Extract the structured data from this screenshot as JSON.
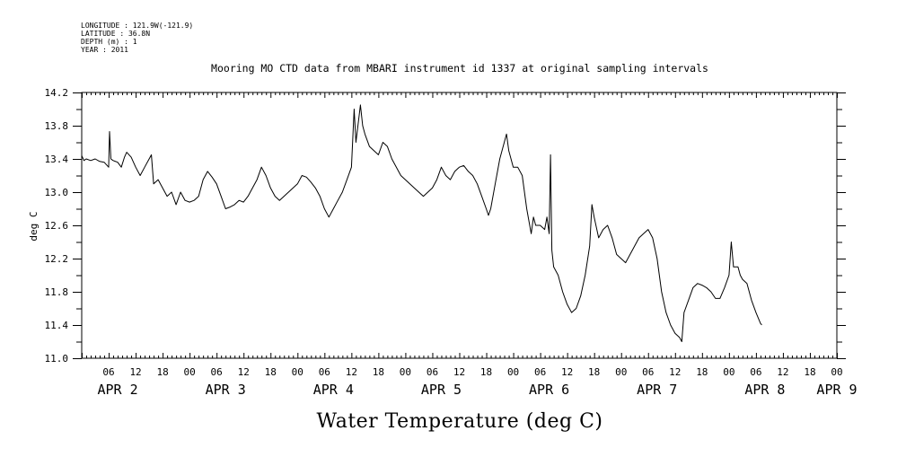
{
  "meta": {
    "longitude": "LONGITUDE : 121.9W(-121.9)",
    "latitude": "LATITUDE : 36.8N",
    "depth": "DEPTH (m) : 1",
    "year": "YEAR : 2011"
  },
  "chart_data": {
    "type": "line",
    "title": "Mooring MO CTD data from MBARI instrument id 1337 at original sampling intervals",
    "xlabel": "Water Temperature (deg C)",
    "ylabel": "deg C",
    "ylim": [
      11.0,
      14.2
    ],
    "yticks": [
      "11.0",
      "11.4",
      "11.8",
      "12.2",
      "12.6",
      "13.0",
      "13.4",
      "13.8",
      "14.2"
    ],
    "xlim_hours": [
      0,
      168
    ],
    "x_unit": "hours since APR 2 2011 00:00 (approx.)",
    "hour_ticks": [
      {
        "t": 6,
        "label": "06"
      },
      {
        "t": 12,
        "label": "12"
      },
      {
        "t": 18,
        "label": "18"
      },
      {
        "t": 24,
        "label": "00"
      },
      {
        "t": 30,
        "label": "06"
      },
      {
        "t": 36,
        "label": "12"
      },
      {
        "t": 42,
        "label": "18"
      },
      {
        "t": 48,
        "label": "00"
      },
      {
        "t": 54,
        "label": "06"
      },
      {
        "t": 60,
        "label": "12"
      },
      {
        "t": 66,
        "label": "18"
      },
      {
        "t": 72,
        "label": "00"
      },
      {
        "t": 78,
        "label": "06"
      },
      {
        "t": 84,
        "label": "12"
      },
      {
        "t": 90,
        "label": "18"
      },
      {
        "t": 96,
        "label": "00"
      },
      {
        "t": 102,
        "label": "06"
      },
      {
        "t": 108,
        "label": "12"
      },
      {
        "t": 114,
        "label": "18"
      },
      {
        "t": 120,
        "label": "00"
      },
      {
        "t": 126,
        "label": "06"
      },
      {
        "t": 132,
        "label": "12"
      },
      {
        "t": 138,
        "label": "18"
      },
      {
        "t": 144,
        "label": "00"
      },
      {
        "t": 150,
        "label": "06"
      },
      {
        "t": 156,
        "label": "12"
      },
      {
        "t": 162,
        "label": "18"
      },
      {
        "t": 168,
        "label": "00"
      }
    ],
    "date_labels": [
      {
        "t": 8,
        "label": "APR  2"
      },
      {
        "t": 32,
        "label": "APR  3"
      },
      {
        "t": 56,
        "label": "APR  4"
      },
      {
        "t": 80,
        "label": "APR  5"
      },
      {
        "t": 104,
        "label": "APR  6"
      },
      {
        "t": 128,
        "label": "APR  7"
      },
      {
        "t": 152,
        "label": "APR  8"
      },
      {
        "t": 168,
        "label": "APR  9"
      }
    ],
    "series": [
      {
        "points": [
          [
            0,
            13.44
          ],
          [
            0.5,
            13.38
          ],
          [
            1,
            13.4
          ],
          [
            2,
            13.38
          ],
          [
            3,
            13.4
          ],
          [
            4,
            13.37
          ],
          [
            5,
            13.36
          ],
          [
            6,
            13.3
          ],
          [
            6.2,
            13.73
          ],
          [
            6.5,
            13.4
          ],
          [
            7,
            13.38
          ],
          [
            8,
            13.36
          ],
          [
            8.8,
            13.3
          ],
          [
            9.5,
            13.42
          ],
          [
            10,
            13.48
          ],
          [
            11,
            13.42
          ],
          [
            12,
            13.3
          ],
          [
            13,
            13.2
          ],
          [
            14,
            13.3
          ],
          [
            15,
            13.4
          ],
          [
            15.5,
            13.45
          ],
          [
            16,
            13.1
          ],
          [
            17,
            13.15
          ],
          [
            18,
            13.05
          ],
          [
            19,
            12.95
          ],
          [
            20,
            13.0
          ],
          [
            21,
            12.85
          ],
          [
            22,
            13.0
          ],
          [
            23,
            12.9
          ],
          [
            24,
            12.88
          ],
          [
            25,
            12.9
          ],
          [
            26,
            12.95
          ],
          [
            27,
            13.15
          ],
          [
            28,
            13.25
          ],
          [
            29,
            13.18
          ],
          [
            30,
            13.1
          ],
          [
            31,
            12.95
          ],
          [
            32,
            12.8
          ],
          [
            33,
            12.82
          ],
          [
            34,
            12.85
          ],
          [
            35,
            12.9
          ],
          [
            36,
            12.88
          ],
          [
            37,
            12.95
          ],
          [
            38,
            13.05
          ],
          [
            39,
            13.15
          ],
          [
            40,
            13.3
          ],
          [
            41,
            13.2
          ],
          [
            42,
            13.05
          ],
          [
            43,
            12.95
          ],
          [
            44,
            12.9
          ],
          [
            45,
            12.95
          ],
          [
            46,
            13.0
          ],
          [
            47,
            13.05
          ],
          [
            48,
            13.1
          ],
          [
            49,
            13.2
          ],
          [
            50,
            13.18
          ],
          [
            51,
            13.12
          ],
          [
            52,
            13.05
          ],
          [
            53,
            12.95
          ],
          [
            54,
            12.8
          ],
          [
            55,
            12.7
          ],
          [
            56,
            12.8
          ],
          [
            57,
            12.9
          ],
          [
            58,
            13.0
          ],
          [
            59,
            13.15
          ],
          [
            60,
            13.3
          ],
          [
            60.6,
            14.0
          ],
          [
            61,
            13.6
          ],
          [
            62,
            14.05
          ],
          [
            62.5,
            13.8
          ],
          [
            63,
            13.7
          ],
          [
            64,
            13.55
          ],
          [
            65,
            13.5
          ],
          [
            66,
            13.45
          ],
          [
            67,
            13.6
          ],
          [
            68,
            13.55
          ],
          [
            69,
            13.4
          ],
          [
            70,
            13.3
          ],
          [
            71,
            13.2
          ],
          [
            72,
            13.15
          ],
          [
            73,
            13.1
          ],
          [
            74,
            13.05
          ],
          [
            75,
            13.0
          ],
          [
            76,
            12.95
          ],
          [
            77,
            13.0
          ],
          [
            78,
            13.05
          ],
          [
            79,
            13.15
          ],
          [
            80,
            13.3
          ],
          [
            81,
            13.2
          ],
          [
            82,
            13.15
          ],
          [
            83,
            13.25
          ],
          [
            84,
            13.3
          ],
          [
            85,
            13.32
          ],
          [
            86,
            13.25
          ],
          [
            87,
            13.2
          ],
          [
            88,
            13.1
          ],
          [
            89,
            12.95
          ],
          [
            90,
            12.8
          ],
          [
            90.5,
            12.72
          ],
          [
            91,
            12.8
          ],
          [
            92,
            13.1
          ],
          [
            93,
            13.4
          ],
          [
            94,
            13.6
          ],
          [
            94.5,
            13.7
          ],
          [
            95,
            13.5
          ],
          [
            96,
            13.3
          ],
          [
            97,
            13.3
          ],
          [
            98,
            13.2
          ],
          [
            99,
            12.8
          ],
          [
            100,
            12.5
          ],
          [
            100.5,
            12.7
          ],
          [
            101,
            12.6
          ],
          [
            102,
            12.6
          ],
          [
            103,
            12.55
          ],
          [
            103.5,
            12.7
          ],
          [
            104,
            12.5
          ],
          [
            104.3,
            13.45
          ],
          [
            104.6,
            12.3
          ],
          [
            105,
            12.1
          ],
          [
            106,
            12.0
          ],
          [
            107,
            11.8
          ],
          [
            108,
            11.65
          ],
          [
            109,
            11.55
          ],
          [
            110,
            11.6
          ],
          [
            111,
            11.75
          ],
          [
            112,
            12.0
          ],
          [
            113,
            12.35
          ],
          [
            113.5,
            12.85
          ],
          [
            114,
            12.7
          ],
          [
            115,
            12.45
          ],
          [
            116,
            12.55
          ],
          [
            117,
            12.6
          ],
          [
            118,
            12.45
          ],
          [
            119,
            12.25
          ],
          [
            120,
            12.2
          ],
          [
            121,
            12.15
          ],
          [
            122,
            12.25
          ],
          [
            123,
            12.35
          ],
          [
            124,
            12.45
          ],
          [
            125,
            12.5
          ],
          [
            126,
            12.55
          ],
          [
            127,
            12.45
          ],
          [
            128,
            12.2
          ],
          [
            129,
            11.8
          ],
          [
            130,
            11.55
          ],
          [
            131,
            11.4
          ],
          [
            132,
            11.3
          ],
          [
            133,
            11.25
          ],
          [
            133.5,
            11.2
          ],
          [
            134,
            11.55
          ],
          [
            135,
            11.7
          ],
          [
            136,
            11.85
          ],
          [
            137,
            11.9
          ],
          [
            138,
            11.88
          ],
          [
            139,
            11.85
          ],
          [
            140,
            11.8
          ],
          [
            141,
            11.72
          ],
          [
            142,
            11.72
          ],
          [
            143,
            11.85
          ],
          [
            144,
            12.0
          ],
          [
            144.5,
            12.4
          ],
          [
            145,
            12.1
          ],
          [
            146,
            12.1
          ],
          [
            146.5,
            12.0
          ],
          [
            147,
            11.95
          ],
          [
            148,
            11.9
          ],
          [
            149,
            11.7
          ],
          [
            150,
            11.55
          ],
          [
            151,
            11.42
          ],
          [
            151.3,
            11.4
          ]
        ]
      }
    ]
  }
}
